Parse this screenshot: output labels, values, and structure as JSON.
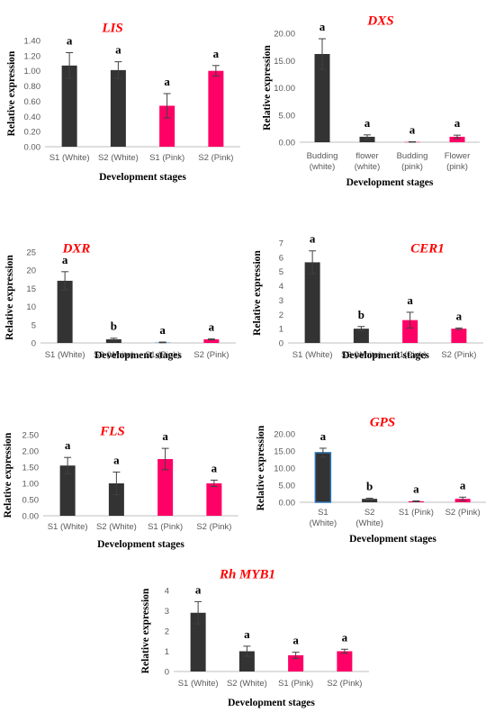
{
  "chart_data": [
    {
      "type": "bar",
      "title": "LIS",
      "xlabel": "Development stages",
      "ylabel": "Relative expression",
      "ylim": [
        0,
        1.4
      ],
      "yticks": [
        "0.00",
        "0.20",
        "0.40",
        "0.60",
        "0.80",
        "1.00",
        "1.20",
        "1.40"
      ],
      "categories": [
        [
          "S1 (White)"
        ],
        [
          "S2 (White)"
        ],
        [
          "S1 (Pink)"
        ],
        [
          "S2 (Pink)"
        ]
      ],
      "values": [
        1.07,
        1.01,
        0.54,
        1.0
      ],
      "errors": [
        0.17,
        0.11,
        0.16,
        0.07
      ],
      "significance": [
        "a",
        "a",
        "a",
        "a"
      ],
      "colors": [
        "#333333",
        "#333333",
        "#ff0066",
        "#ff0066"
      ]
    },
    {
      "type": "bar",
      "title": "DXS",
      "xlabel": "Development stages",
      "ylabel": "Relative expression",
      "ylim": [
        0,
        20
      ],
      "yticks": [
        "0.00",
        "5.00",
        "10.00",
        "15.00",
        "20.00"
      ],
      "categories": [
        [
          "Budding",
          "(white)"
        ],
        [
          "flower",
          "(white)"
        ],
        [
          "Budding",
          "(pink)"
        ],
        [
          "Flower",
          "(pink)"
        ]
      ],
      "values": [
        16.2,
        1.0,
        0.05,
        1.0
      ],
      "errors": [
        2.8,
        0.35,
        0.05,
        0.3
      ],
      "significance": [
        "a",
        "a",
        "a",
        "a"
      ],
      "colors": [
        "#333333",
        "#333333",
        "#ff0066",
        "#ff0066"
      ]
    },
    {
      "type": "bar",
      "title": "DXR",
      "xlabel": "Development stages",
      "ylabel": "Relative expression",
      "ylim": [
        0,
        25
      ],
      "yticks": [
        "0",
        "5",
        "10",
        "15",
        "20",
        "25"
      ],
      "categories": [
        [
          "S1 (White)"
        ],
        [
          "S2 (White)"
        ],
        [
          "S1 (Pink)"
        ],
        [
          "S2 (Pink)"
        ]
      ],
      "values": [
        17.1,
        1.0,
        0.15,
        1.0
      ],
      "errors": [
        2.5,
        0.3,
        0.1,
        0.15
      ],
      "significance": [
        "a",
        "b",
        "a",
        "a"
      ],
      "colors": [
        "#333333",
        "#333333",
        "#5b9bd5",
        "#ff0066"
      ]
    },
    {
      "type": "bar",
      "title": "CER1",
      "xlabel": "Development stages",
      "ylabel": "Relative expression",
      "ylim": [
        0,
        7
      ],
      "yticks": [
        "0",
        "1",
        "2",
        "3",
        "4",
        "5",
        "6",
        "7"
      ],
      "categories": [
        [
          "S1 (White)"
        ],
        [
          "S2 (White)"
        ],
        [
          "S1(Pink)"
        ],
        [
          "S2 (Pink)"
        ]
      ],
      "values": [
        5.65,
        1.0,
        1.6,
        1.0
      ],
      "errors": [
        0.8,
        0.15,
        0.55,
        0.05
      ],
      "significance": [
        "a",
        "b",
        "a",
        "a"
      ],
      "colors": [
        "#333333",
        "#333333",
        "#ff0066",
        "#ff0066"
      ]
    },
    {
      "type": "bar",
      "title": "FLS",
      "xlabel": "Development stages",
      "ylabel": "Relative expression",
      "ylim": [
        0,
        2.5
      ],
      "yticks": [
        "0.00",
        "0.50",
        "1.00",
        "1.50",
        "2.00",
        "2.50"
      ],
      "categories": [
        [
          "S1 (White)"
        ],
        [
          "S2 (White)"
        ],
        [
          "S1 (Pink)"
        ],
        [
          "S2 (Pink)"
        ]
      ],
      "values": [
        1.55,
        1.0,
        1.75,
        1.0
      ],
      "errors": [
        0.25,
        0.35,
        0.33,
        0.1
      ],
      "significance": [
        "a",
        "a",
        "a",
        "a"
      ],
      "colors": [
        "#333333",
        "#333333",
        "#ff0066",
        "#ff0066"
      ]
    },
    {
      "type": "bar",
      "title": "GPS",
      "xlabel": "Development stages",
      "ylabel": "Relative expression",
      "ylim": [
        0,
        20
      ],
      "yticks": [
        "0.00",
        "5.00",
        "10.00",
        "15.00",
        "20.00"
      ],
      "categories": [
        [
          "S1",
          "(White)"
        ],
        [
          "S2",
          "(White)"
        ],
        [
          "S1 (Pink)"
        ],
        [
          "S2 (Pink)"
        ]
      ],
      "values": [
        14.5,
        1.0,
        0.3,
        1.0
      ],
      "errors": [
        1.3,
        0.2,
        0.1,
        0.5
      ],
      "significance": [
        "a",
        "b",
        "a",
        "a"
      ],
      "colors": [
        "#333333",
        "#333333",
        "#ff0066",
        "#ff0066"
      ],
      "outline": [
        "#2e75b6",
        "",
        "",
        ""
      ]
    },
    {
      "type": "bar",
      "title": "Rh MYB1",
      "xlabel": "Development stages",
      "ylabel": "Relative expression",
      "ylim": [
        0,
        4
      ],
      "yticks": [
        "0",
        "1",
        "2",
        "3",
        "4"
      ],
      "categories": [
        [
          "S1 (White)"
        ],
        [
          "S2 (White)"
        ],
        [
          "S1 (Pink)"
        ],
        [
          "S2 (Pink)"
        ]
      ],
      "values": [
        2.9,
        1.0,
        0.8,
        1.0
      ],
      "errors": [
        0.55,
        0.25,
        0.15,
        0.1
      ],
      "significance": [
        "a",
        "a",
        "a",
        "a"
      ],
      "colors": [
        "#333333",
        "#333333",
        "#ff0066",
        "#ff0066"
      ]
    }
  ]
}
